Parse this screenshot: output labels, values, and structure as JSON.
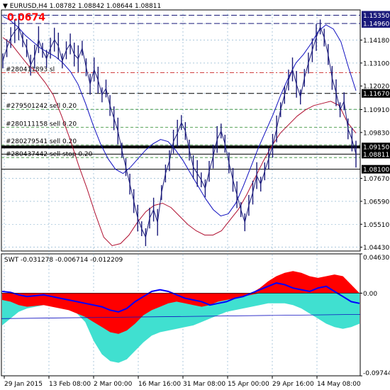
{
  "header": {
    "symbol_line": "EURUSD,H4  1.08782 1.08842 1.08644 1.08811",
    "counter": "0.0674"
  },
  "indicator": {
    "label": "SWT -0.031278 -0.006714 -0.012209"
  },
  "colors": {
    "price_line": "#1a1a7a",
    "ma_blue": "#1010c0",
    "ma_red": "#b01030",
    "swt_red": "#ff0000",
    "swt_cyan": "#40e0d0",
    "swt_line": "#0000ff",
    "price_tag": "#1a1a7a",
    "tag_black": "#000000",
    "counter": "#ff0000"
  },
  "chart_data": [
    {
      "type": "line",
      "title": "EURUSD,H4",
      "x_ticks": [
        "29 Jan 2015",
        "13 Feb 08:00",
        "2 Mar 00:00",
        "16 Mar 16:00",
        "31 Mar 08:00",
        "15 Apr 00:00",
        "29 Apr 16:00",
        "14 May 08:00"
      ],
      "y_ticks": [
        "1.15350",
        "1.14960",
        "1.14180",
        "1.13100",
        "1.12020",
        "1.11670",
        "1.10910",
        "1.09830",
        "1.09150",
        "1.08811",
        "1.08100",
        "1.07670",
        "1.06590",
        "1.05510",
        "1.04430"
      ],
      "ylim": [
        1.0425,
        1.156
      ],
      "highlighted_levels": [
        {
          "value": 1.1535,
          "label": "1.15350",
          "style": "price"
        },
        {
          "value": 1.1496,
          "label": "1.14960",
          "style": "price"
        },
        {
          "value": 1.1167,
          "label": "1.11670",
          "style": "black"
        },
        {
          "value": 1.0915,
          "label": "1.09150",
          "style": "black"
        },
        {
          "value": 1.08811,
          "label": "1.08811",
          "style": "black"
        },
        {
          "value": 1.081,
          "label": "1.08100",
          "style": "black"
        }
      ],
      "orders": [
        {
          "label": "#280411893 sl",
          "value": 1.1265
        },
        {
          "label": "#279501242 sell 0.20",
          "value": 1.1092
        },
        {
          "label": "#280111158 sell 0.20",
          "value": 1.1008
        },
        {
          "label": "#280279541 sell 0.20",
          "value": 1.0925
        },
        {
          "label": "#280437442 sell stop 0.20",
          "value": 1.0865
        }
      ],
      "price": [
        1.132,
        1.138,
        1.143,
        1.146,
        1.148,
        1.142,
        1.138,
        1.13,
        1.134,
        1.142,
        1.137,
        1.133,
        1.138,
        1.142,
        1.139,
        1.132,
        1.137,
        1.14,
        1.135,
        1.133,
        1.138,
        1.129,
        1.121,
        1.128,
        1.123,
        1.116,
        1.119,
        1.111,
        1.105,
        1.099,
        1.09,
        1.082,
        1.074,
        1.066,
        1.058,
        1.053,
        1.049,
        1.058,
        1.062,
        1.056,
        1.07,
        1.079,
        1.085,
        1.094,
        1.098,
        1.103,
        1.099,
        1.09,
        1.082,
        1.079,
        1.076,
        1.072,
        1.08,
        1.087,
        1.095,
        1.099,
        1.093,
        1.084,
        1.076,
        1.069,
        1.062,
        1.056,
        1.064,
        1.07,
        1.078,
        1.074,
        1.08,
        1.086,
        1.092,
        1.1,
        1.109,
        1.116,
        1.123,
        1.128,
        1.121,
        1.115,
        1.124,
        1.131,
        1.137,
        1.143,
        1.148,
        1.143,
        1.135,
        1.124,
        1.117,
        1.109,
        1.113,
        1.1,
        1.095,
        1.0881
      ],
      "ma_blue": [
        1.153,
        1.151,
        1.148,
        1.144,
        1.141,
        1.138,
        1.136,
        1.134,
        1.131,
        1.127,
        1.121,
        1.112,
        1.102,
        1.093,
        1.086,
        1.081,
        1.079,
        1.082,
        1.086,
        1.09,
        1.093,
        1.095,
        1.094,
        1.09,
        1.085,
        1.079,
        1.073,
        1.067,
        1.062,
        1.059,
        1.06,
        1.065,
        1.073,
        1.082,
        1.091,
        1.099,
        1.107,
        1.116,
        1.124,
        1.131,
        1.135,
        1.14,
        1.146,
        1.149,
        1.147,
        1.141,
        1.129,
        1.118
      ],
      "ma_red": [
        1.143,
        1.14,
        1.135,
        1.13,
        1.127,
        1.122,
        1.116,
        1.106,
        1.095,
        1.083,
        1.072,
        1.06,
        1.049,
        1.045,
        1.046,
        1.05,
        1.056,
        1.061,
        1.064,
        1.065,
        1.063,
        1.059,
        1.055,
        1.052,
        1.05,
        1.05,
        1.052,
        1.057,
        1.062,
        1.069,
        1.077,
        1.085,
        1.092,
        1.098,
        1.102,
        1.106,
        1.109,
        1.111,
        1.112,
        1.113,
        1.111,
        1.103,
        1.098
      ]
    },
    {
      "type": "area",
      "title": "SWT",
      "y_ticks": [
        "0.046301",
        "0.00",
        "-0.097442"
      ],
      "ylim": [
        -0.0974,
        0.0463
      ],
      "series": [
        {
          "name": "",
          "values": [
            -0.008,
            -0.01,
            -0.014,
            -0.016,
            -0.015,
            -0.014,
            -0.016,
            -0.018,
            -0.02,
            -0.024,
            -0.028,
            -0.034,
            -0.04,
            -0.046,
            -0.048,
            -0.044,
            -0.036,
            -0.026,
            -0.02,
            -0.016,
            -0.012,
            -0.01,
            -0.012,
            -0.014,
            -0.016,
            -0.014,
            -0.01,
            -0.008,
            -0.006,
            -0.004,
            -0.002,
            0.006,
            0.014,
            0.02,
            0.024,
            0.026,
            0.024,
            0.02,
            0.018,
            0.02,
            0.022,
            0.02,
            0.01,
            0.0
          ]
        },
        {
          "name": "",
          "values": [
            -0.038,
            -0.03,
            -0.022,
            -0.018,
            -0.016,
            -0.014,
            -0.012,
            -0.012,
            -0.014,
            -0.024,
            -0.034,
            -0.056,
            -0.072,
            -0.08,
            -0.082,
            -0.078,
            -0.068,
            -0.058,
            -0.05,
            -0.046,
            -0.044,
            -0.042,
            -0.04,
            -0.038,
            -0.034,
            -0.03,
            -0.026,
            -0.022,
            -0.02,
            -0.018,
            -0.016,
            -0.014,
            -0.012,
            -0.012,
            -0.012,
            -0.014,
            -0.018,
            -0.024,
            -0.03,
            -0.036,
            -0.04,
            -0.042,
            -0.04,
            -0.036
          ]
        },
        {
          "name": "",
          "values": [
            0.002,
            0.001,
            -0.002,
            -0.004,
            -0.003,
            -0.002,
            -0.004,
            -0.006,
            -0.008,
            -0.01,
            -0.012,
            -0.014,
            -0.016,
            -0.02,
            -0.022,
            -0.018,
            -0.01,
            -0.004,
            0.002,
            0.004,
            0.002,
            -0.002,
            -0.006,
            -0.008,
            -0.01,
            -0.014,
            -0.012,
            -0.01,
            -0.006,
            -0.004,
            0.0,
            0.004,
            0.008,
            0.012,
            0.01,
            0.006,
            0.004,
            0.002,
            0.006,
            0.008,
            0.002,
            -0.004,
            -0.01,
            -0.012
          ]
        }
      ]
    }
  ]
}
